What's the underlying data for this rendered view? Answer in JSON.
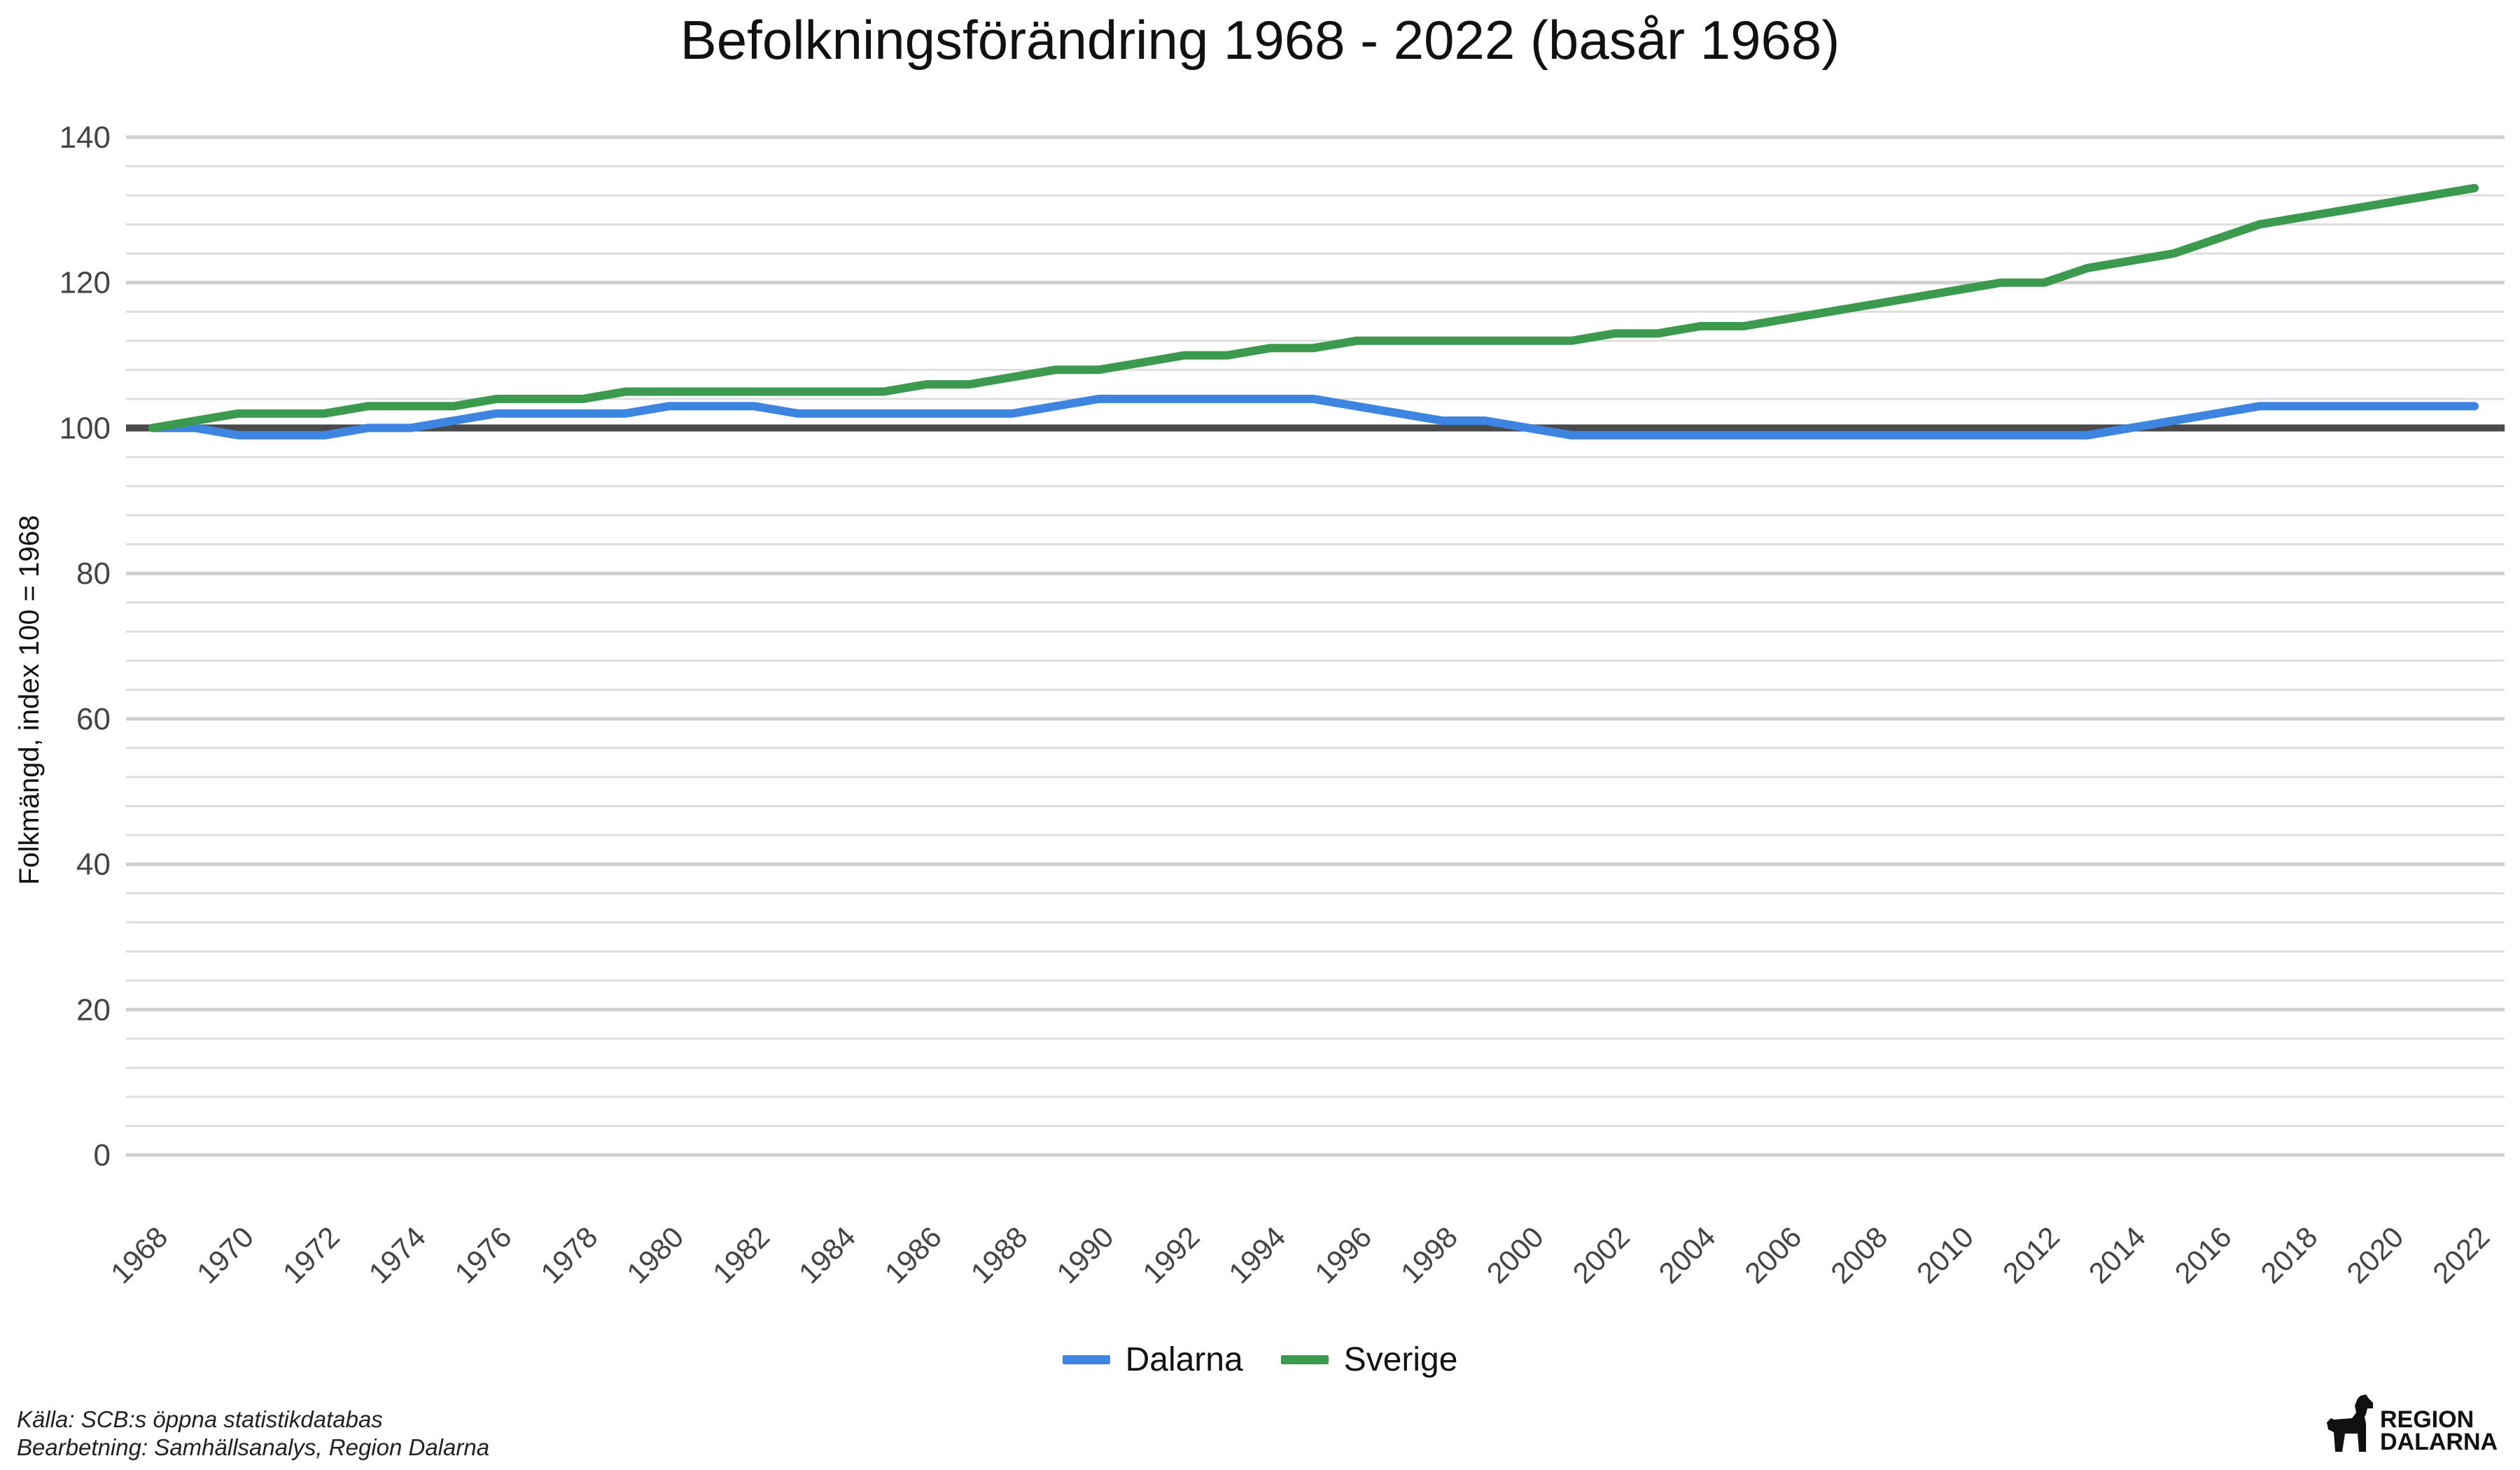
{
  "chart_data": {
    "type": "line",
    "title": "Befolkningsförändring 1968 - 2022 (basår 1968)",
    "ylabel": "Folkmängd, index 100 = 1968",
    "xlabel": "",
    "ylim": [
      0,
      140
    ],
    "yticks": [
      0,
      20,
      40,
      60,
      80,
      100,
      120,
      140
    ],
    "xticks": [
      "1968",
      "1970",
      "1972",
      "1974",
      "1976",
      "1978",
      "1980",
      "1982",
      "1984",
      "1986",
      "1988",
      "1990",
      "1992",
      "1994",
      "1996",
      "1998",
      "2000",
      "2002",
      "2004",
      "2006",
      "2008",
      "2010",
      "2012",
      "2014",
      "2016",
      "2018",
      "2020",
      "2022"
    ],
    "x": [
      1968,
      1969,
      1970,
      1971,
      1972,
      1973,
      1974,
      1975,
      1976,
      1977,
      1978,
      1979,
      1980,
      1981,
      1982,
      1983,
      1984,
      1985,
      1986,
      1987,
      1988,
      1989,
      1990,
      1991,
      1992,
      1993,
      1994,
      1995,
      1996,
      1997,
      1998,
      1999,
      2000,
      2001,
      2002,
      2003,
      2004,
      2005,
      2006,
      2007,
      2008,
      2009,
      2010,
      2011,
      2012,
      2013,
      2014,
      2015,
      2016,
      2017,
      2018,
      2019,
      2020,
      2021,
      2022
    ],
    "reference_line": 100,
    "grid": true,
    "legend_position": "bottom",
    "series": [
      {
        "name": "Dalarna",
        "color": "#3d85e0",
        "values": [
          100,
          100,
          99,
          99,
          99,
          100,
          100,
          101,
          102,
          102,
          102,
          102,
          103,
          103,
          103,
          102,
          102,
          102,
          102,
          102,
          102,
          103,
          104,
          104,
          104,
          104,
          104,
          104,
          103,
          102,
          101,
          101,
          100,
          99,
          99,
          99,
          99,
          99,
          99,
          99,
          99,
          99,
          99,
          99,
          99,
          99,
          100,
          101,
          102,
          103,
          103,
          103,
          103,
          103,
          103
        ]
      },
      {
        "name": "Sverige",
        "color": "#3c9a4f",
        "values": [
          100,
          101,
          102,
          102,
          102,
          103,
          103,
          103,
          104,
          104,
          104,
          105,
          105,
          105,
          105,
          105,
          105,
          105,
          106,
          106,
          107,
          108,
          108,
          109,
          110,
          110,
          111,
          111,
          112,
          112,
          112,
          112,
          112,
          112,
          113,
          113,
          114,
          114,
          115,
          116,
          117,
          118,
          119,
          120,
          120,
          122,
          123,
          124,
          126,
          128,
          129,
          130,
          131,
          132,
          133
        ]
      }
    ]
  },
  "source": {
    "line1": "Källa: SCB:s öppna statistikdatabas",
    "line2": "Bearbetning: Samhällsanalys, Region Dalarna"
  },
  "logo": {
    "line1": "REGION",
    "line2": "DALARNA",
    "icon": "dala-horse-icon"
  }
}
